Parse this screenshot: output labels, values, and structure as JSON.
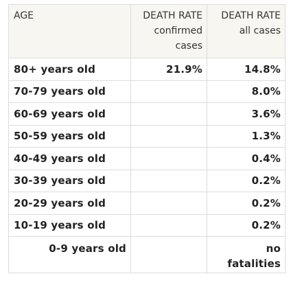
{
  "table": {
    "headers": {
      "age": "AGE",
      "confirmed": [
        "DEATH RATE",
        "confirmed",
        "cases"
      ],
      "all": [
        "DEATH RATE",
        "all cases"
      ]
    },
    "rows": [
      {
        "age": "80+ years old",
        "confirmed": "21.9%",
        "all": "14.8%"
      },
      {
        "age": "70-79 years old",
        "confirmed": "",
        "all": "8.0%"
      },
      {
        "age": "60-69 years old",
        "confirmed": "",
        "all": "3.6%"
      },
      {
        "age": "50-59 years old",
        "confirmed": "",
        "all": "1.3%"
      },
      {
        "age": "40-49 years old",
        "confirmed": "",
        "all": "0.4%"
      },
      {
        "age": "30-39 years old",
        "confirmed": "",
        "all": "0.2%"
      },
      {
        "age": "20-29 years old",
        "confirmed": "",
        "all": "0.2%"
      },
      {
        "age": "10-19 years old",
        "confirmed": "",
        "all": "0.2%"
      },
      {
        "age": "0-9 years old",
        "confirmed": "",
        "all": [
          "no",
          "fatalities"
        ]
      }
    ]
  }
}
